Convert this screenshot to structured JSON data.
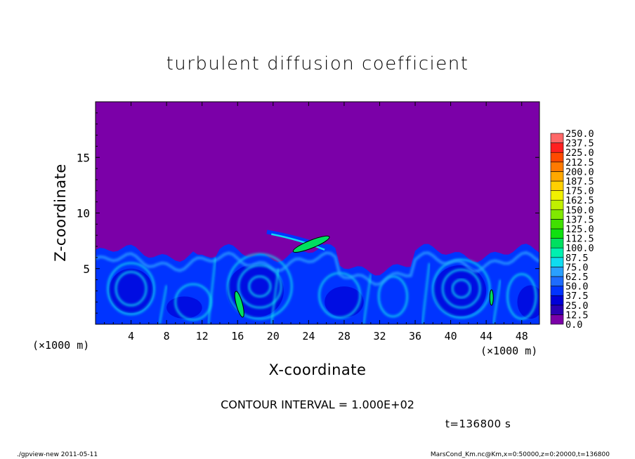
{
  "chart_data": {
    "type": "heatmap",
    "title": "turbulent diffusion coefficient",
    "xlabel": "X-coordinate",
    "ylabel": "Z-coordinate",
    "x_unit": "(×1000 m)",
    "xlim": [
      0,
      50
    ],
    "ylim": [
      0,
      20
    ],
    "x_ticks": [
      4,
      8,
      12,
      16,
      20,
      24,
      28,
      32,
      36,
      40,
      44,
      48
    ],
    "y_ticks": [
      5,
      10,
      15
    ],
    "colorbar": {
      "levels": [
        "0.0",
        "12.5",
        "25.0",
        "37.5",
        "50.0",
        "62.5",
        "75.0",
        "87.5",
        "100.0",
        "112.5",
        "125.0",
        "137.5",
        "150.0",
        "162.5",
        "175.0",
        "187.5",
        "200.0",
        "212.5",
        "225.0",
        "237.5",
        "250.0"
      ],
      "colors": [
        "#7b00a8",
        "#2a00b4",
        "#0000d8",
        "#0034ff",
        "#1e6cff",
        "#2aa0ff",
        "#10dcf0",
        "#00f0b0",
        "#00e060",
        "#10e010",
        "#40e000",
        "#80e800",
        "#c0f000",
        "#f0f000",
        "#ffd000",
        "#ffa800",
        "#ff7a00",
        "#ff4a00",
        "#ff2020",
        "#ff6868"
      ]
    },
    "background_value": "0.0",
    "boundary_layer_top_km": 7,
    "contour_interval": "1.000E+02",
    "time": "t=136800 s"
  },
  "texts": {
    "title": "turbulent diffusion coefficient",
    "xlabel": "X-coordinate",
    "ylabel": "Z-coordinate",
    "xunit_left": "(×1000 m)",
    "xunit_right": "(×1000 m)",
    "contour": "CONTOUR INTERVAL = 1.000E+02",
    "time": "t=136800 s",
    "footer_left": "./gpview-new   2011-05-11",
    "footer_right": "MarsCond_Km.nc@Km,x=0:50000,z=0:20000,t=136800"
  }
}
